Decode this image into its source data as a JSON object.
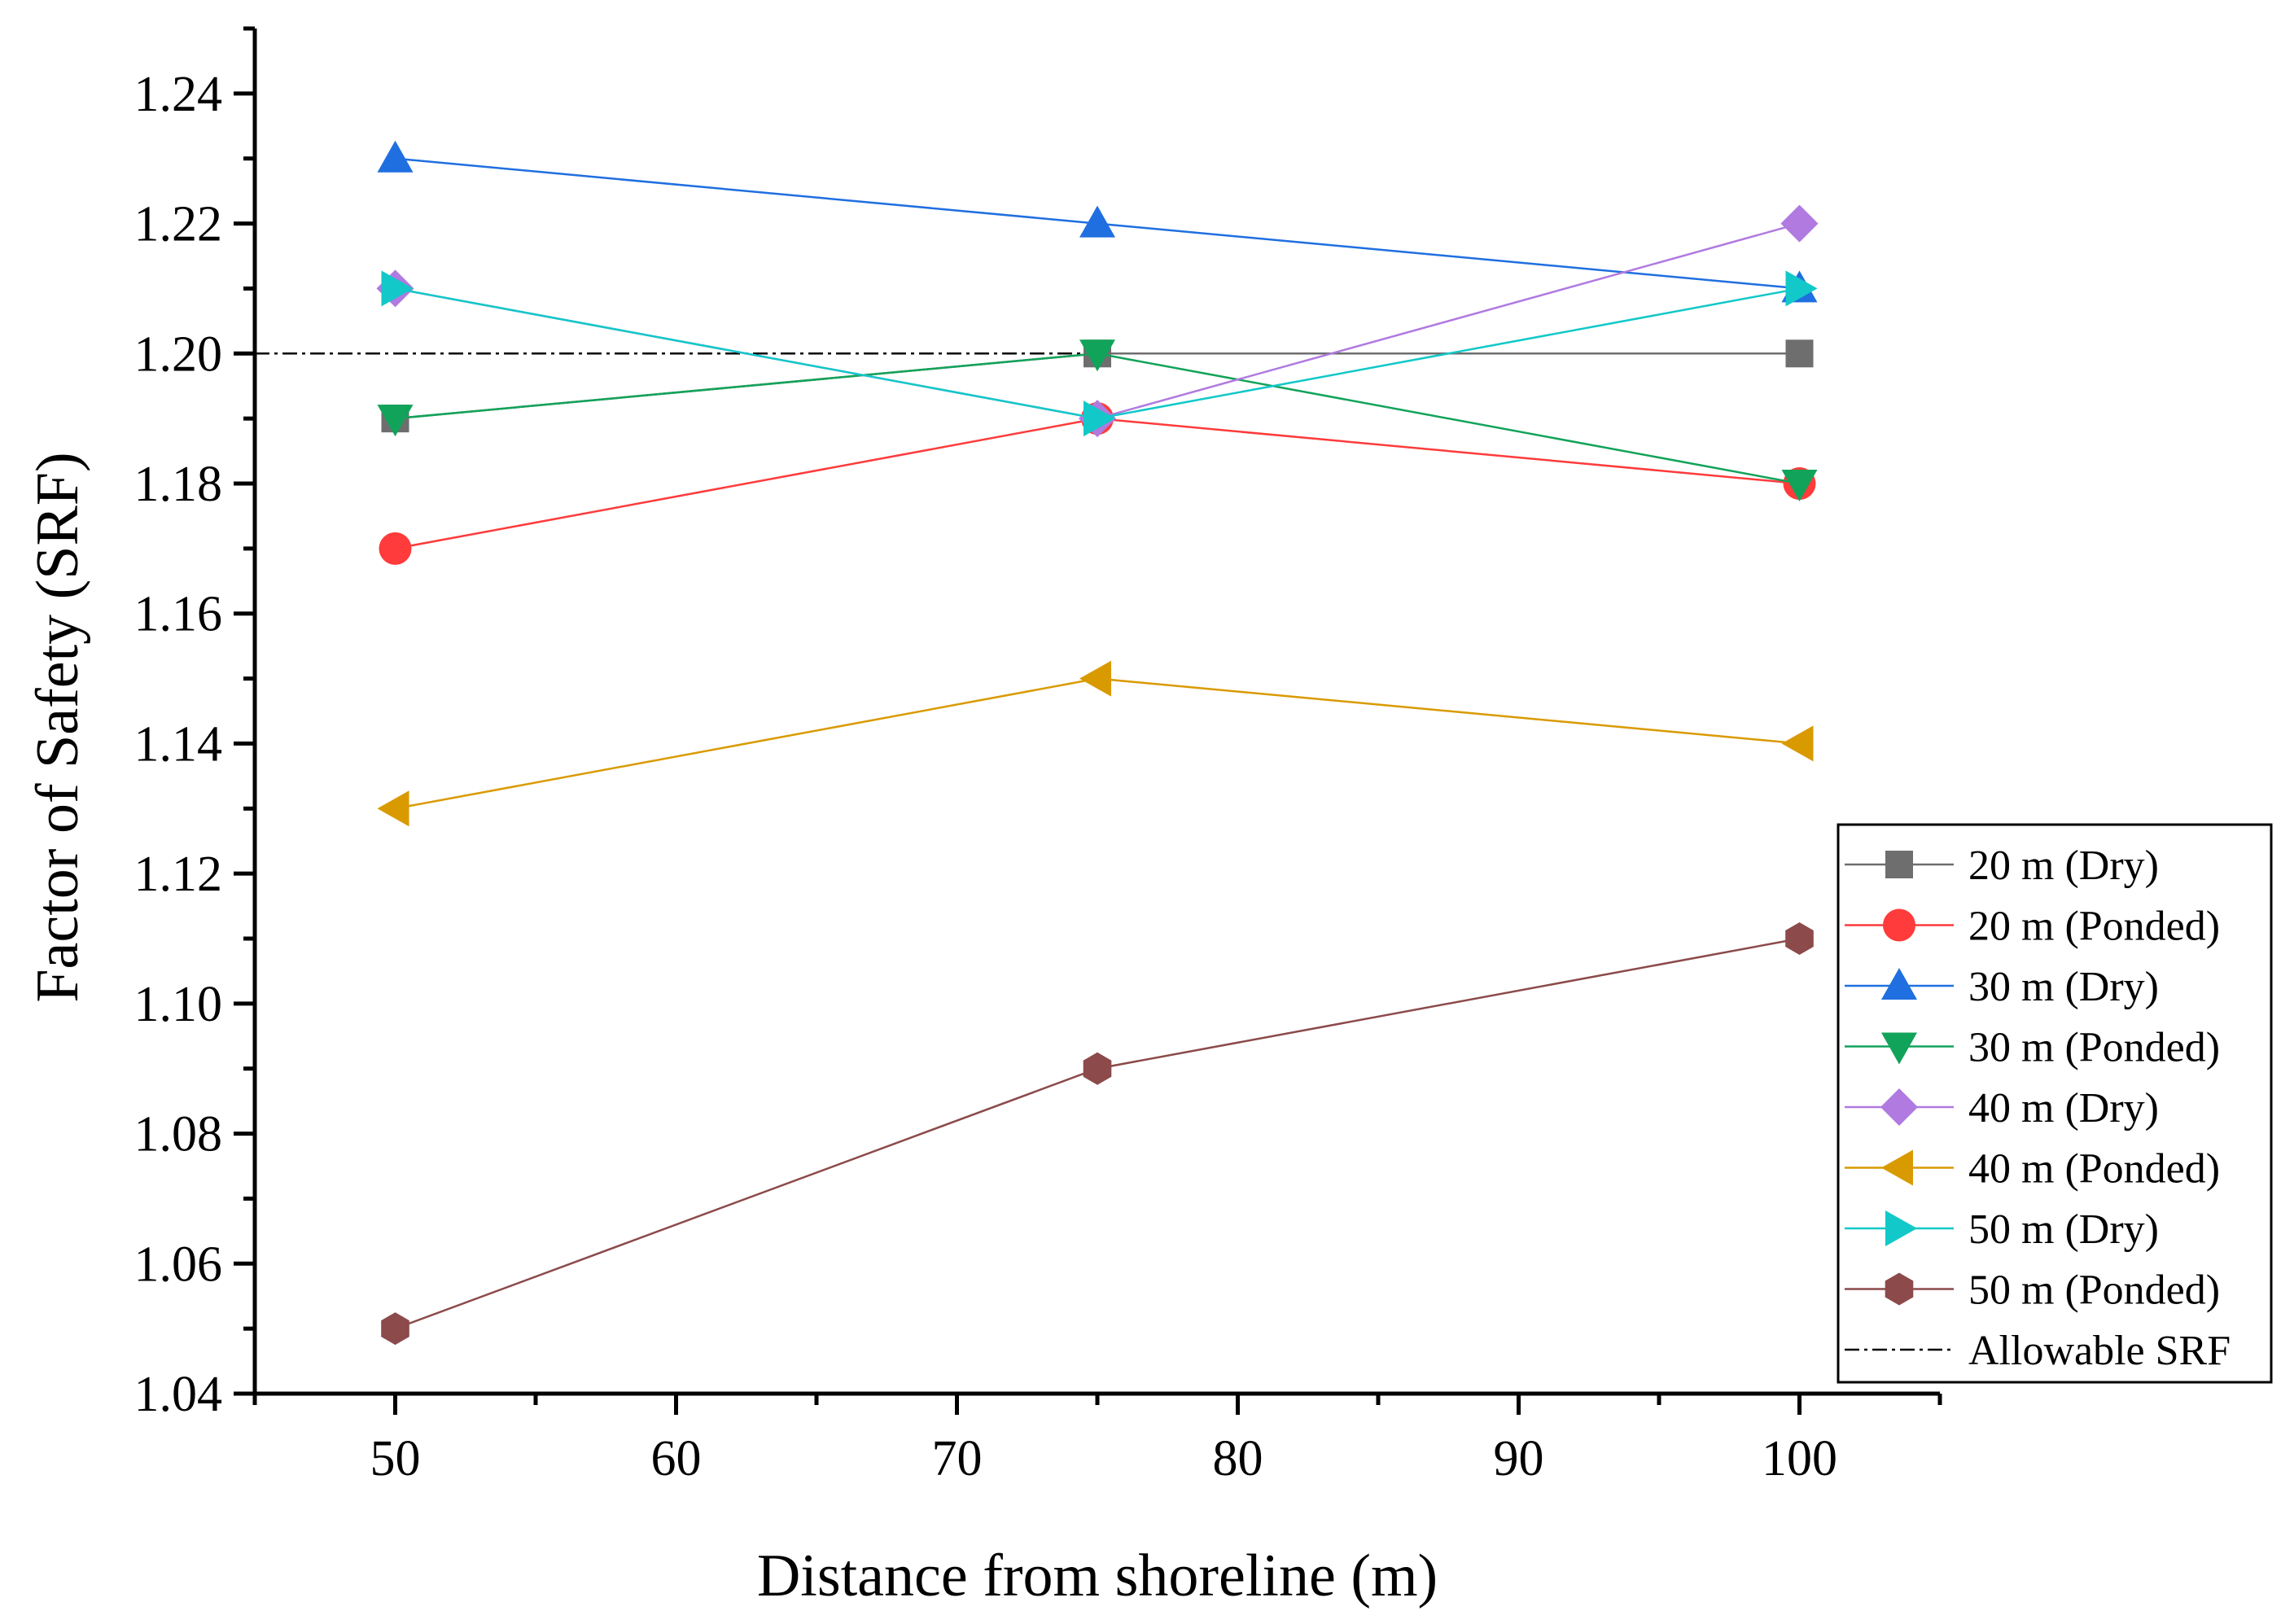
{
  "chart_data": {
    "type": "line",
    "title": "",
    "xlabel": "Distance from shoreline (m)",
    "ylabel": "Factor of Safety (SRF)",
    "xlim": [
      45,
      105
    ],
    "ylim": [
      1.04,
      1.25
    ],
    "x_ticks": [
      50,
      60,
      70,
      80,
      90,
      100
    ],
    "y_ticks": [
      1.04,
      1.06,
      1.08,
      1.1,
      1.12,
      1.14,
      1.16,
      1.18,
      1.2,
      1.22,
      1.24
    ],
    "x_tick_labels": [
      "50",
      "60",
      "70",
      "80",
      "90",
      "100"
    ],
    "y_tick_labels": [
      "1.04",
      "1.06",
      "1.08",
      "1.10",
      "1.12",
      "1.14",
      "1.16",
      "1.18",
      "1.20",
      "1.22",
      "1.24"
    ],
    "grid": false,
    "legend_position": "bottom-right",
    "x": [
      50,
      75,
      100
    ],
    "series": [
      {
        "name": "20 m (Dry)",
        "values": [
          1.19,
          1.2,
          1.2
        ],
        "color": "#6e6e6e",
        "marker": "square"
      },
      {
        "name": "20 m (Ponded)",
        "values": [
          1.17,
          1.19,
          1.18
        ],
        "color": "#ff3b3b",
        "marker": "circle"
      },
      {
        "name": "30 m (Dry)",
        "values": [
          1.23,
          1.22,
          1.21
        ],
        "color": "#1f6fe0",
        "marker": "triangle-up"
      },
      {
        "name": "30 m (Ponded)",
        "values": [
          1.19,
          1.2,
          1.18
        ],
        "color": "#12a35a",
        "marker": "triangle-down"
      },
      {
        "name": "40 m (Dry)",
        "values": [
          1.21,
          1.19,
          1.22
        ],
        "color": "#b07ae0",
        "marker": "diamond"
      },
      {
        "name": "40 m (Ponded)",
        "values": [
          1.13,
          1.15,
          1.14
        ],
        "color": "#d99a00",
        "marker": "triangle-left"
      },
      {
        "name": "50 m (Dry)",
        "values": [
          1.21,
          1.19,
          1.21
        ],
        "color": "#12c8c8",
        "marker": "triangle-right"
      },
      {
        "name": "50 m (Ponded)",
        "values": [
          1.05,
          1.09,
          1.11
        ],
        "color": "#8c4a4a",
        "marker": "hexagon"
      }
    ],
    "reference_line": {
      "name": "Allowable SRF",
      "value": 1.2,
      "color": "#000000",
      "style": "dash-dot"
    }
  }
}
